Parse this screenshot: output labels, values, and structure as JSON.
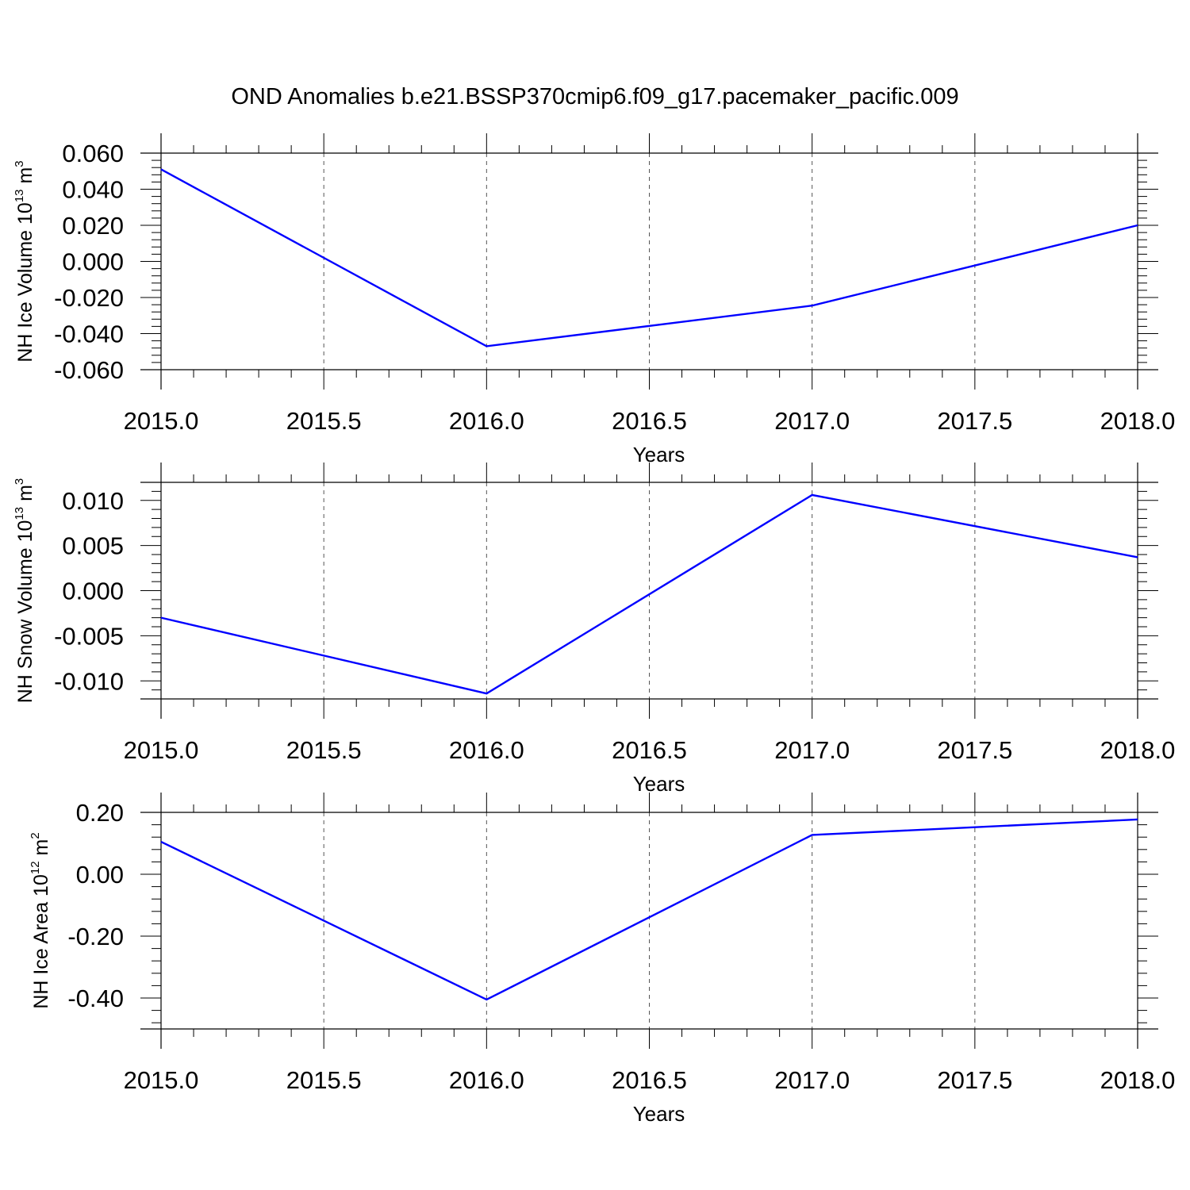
{
  "title": "OND Anomalies b.e21.BSSP370cmip6.f09_g17.pacemaker_pacific.009",
  "colors": {
    "line": "#0000ff",
    "axis": "#000000",
    "grid": "#555555"
  },
  "chart_data": [
    {
      "type": "line",
      "xlabel": "Years",
      "ylabel": {
        "text": "NH Ice Volume 10",
        "exp": "13",
        "unit": " m",
        "unit_exp": "3"
      },
      "x": [
        2015,
        2016,
        2017,
        2018
      ],
      "series": [
        {
          "values": [
            0.051,
            -0.047,
            -0.0245,
            0.02
          ]
        }
      ],
      "xlim": [
        2015,
        2018
      ],
      "ylim": [
        -0.06,
        0.06
      ],
      "xticks": [
        2015.0,
        2015.5,
        2016.0,
        2016.5,
        2017.0,
        2017.5,
        2018.0
      ],
      "xtick_labels": [
        "2015.0",
        "2015.5",
        "2016.0",
        "2016.5",
        "2017.0",
        "2017.5",
        "2018.0"
      ],
      "yticks": [
        0.06,
        0.04,
        0.02,
        0.0,
        -0.02,
        -0.04,
        -0.06
      ],
      "ytick_labels": [
        "0.060",
        "0.040",
        "0.020",
        "0.000",
        "-0.020",
        "-0.040",
        "-0.060"
      ],
      "grid": "vertical dashed"
    },
    {
      "type": "line",
      "xlabel": "Years",
      "ylabel": {
        "text": "NH Snow Volume 10",
        "exp": "13",
        "unit": " m",
        "unit_exp": "3"
      },
      "x": [
        2015,
        2016,
        2017,
        2018
      ],
      "series": [
        {
          "values": [
            -0.003,
            -0.0114,
            0.0106,
            0.0037
          ]
        }
      ],
      "xlim": [
        2015,
        2018
      ],
      "ylim": [
        -0.012,
        0.012
      ],
      "xticks": [
        2015.0,
        2015.5,
        2016.0,
        2016.5,
        2017.0,
        2017.5,
        2018.0
      ],
      "xtick_labels": [
        "2015.0",
        "2015.5",
        "2016.0",
        "2016.5",
        "2017.0",
        "2017.5",
        "2018.0"
      ],
      "yticks": [
        0.01,
        0.005,
        0.0,
        -0.005,
        -0.01
      ],
      "ytick_labels": [
        "0.010",
        "0.005",
        "0.000",
        "-0.005",
        "-0.010"
      ],
      "grid": "vertical dashed"
    },
    {
      "type": "line",
      "xlabel": "Years",
      "ylabel": {
        "text": "NH Ice Area 10",
        "exp": "12",
        "unit": " m",
        "unit_exp": "2"
      },
      "x": [
        2015,
        2016,
        2017,
        2018
      ],
      "series": [
        {
          "values": [
            0.105,
            -0.405,
            0.127,
            0.177
          ]
        }
      ],
      "xlim": [
        2015,
        2018
      ],
      "ylim": [
        -0.5,
        0.2
      ],
      "xticks": [
        2015.0,
        2015.5,
        2016.0,
        2016.5,
        2017.0,
        2017.5,
        2018.0
      ],
      "xtick_labels": [
        "2015.0",
        "2015.5",
        "2016.0",
        "2016.5",
        "2017.0",
        "2017.5",
        "2018.0"
      ],
      "yticks": [
        0.2,
        0.0,
        -0.2,
        -0.4
      ],
      "ytick_labels": [
        "0.20",
        "0.00",
        "-0.20",
        "-0.40"
      ],
      "grid": "vertical dashed"
    }
  ]
}
